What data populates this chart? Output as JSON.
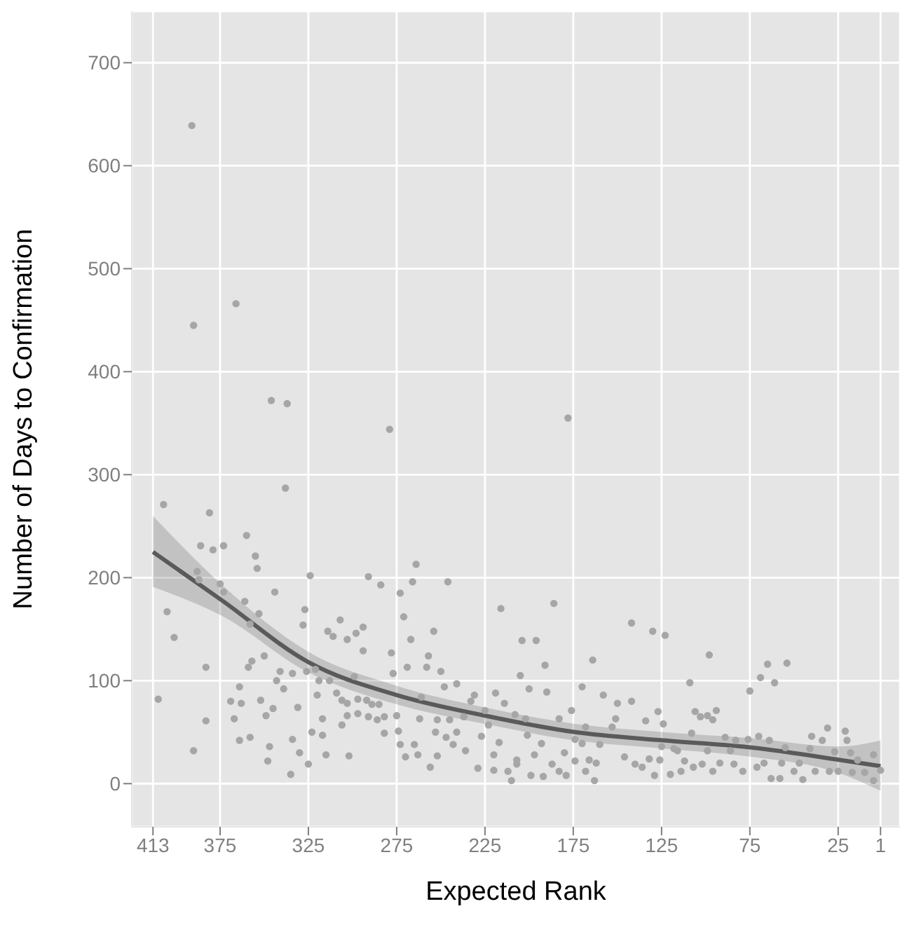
{
  "chart_data": {
    "type": "scatter",
    "xlabel": "Expected Rank",
    "ylabel": "Number of Days to Confirmation",
    "xlim": [
      425,
      -10
    ],
    "xticks": [
      413,
      375,
      325,
      275,
      225,
      175,
      125,
      75,
      25,
      1
    ],
    "ylim": [
      -42,
      750
    ],
    "yticks": [
      0,
      100,
      200,
      300,
      400,
      500,
      600,
      700
    ],
    "grid": true,
    "legend": false,
    "series": [
      {
        "marker": "circle",
        "color": "#a6a6a6",
        "x": [
          391,
          366,
          390,
          346,
          337,
          279,
          338,
          407,
          381,
          386,
          379,
          373,
          360,
          355,
          354,
          388,
          387,
          375,
          373,
          324,
          344,
          361,
          353,
          327,
          328,
          405,
          401,
          358,
          350,
          357,
          359,
          383,
          410,
          383,
          390,
          364,
          369,
          363,
          367,
          364,
          358,
          352,
          345,
          349,
          347,
          348,
          335,
          334,
          330,
          325,
          323,
          317,
          317,
          315,
          331,
          339,
          343,
          341,
          334,
          326,
          321,
          319,
          320,
          313,
          314,
          311,
          307,
          303,
          298,
          294,
          294,
          291,
          284,
          309,
          306,
          303,
          299,
          297,
          297,
          303,
          306,
          302,
          292,
          289,
          285,
          291,
          286,
          282,
          282,
          278,
          277,
          274,
          275,
          273,
          270,
          269,
          267,
          271,
          273,
          266,
          264,
          265,
          263,
          262,
          261,
          258,
          257,
          254,
          246,
          250,
          248,
          241,
          252,
          253,
          247,
          256,
          252,
          245,
          243,
          241,
          236,
          237,
          233,
          231,
          225,
          227,
          229,
          220,
          220,
          217,
          223,
          219,
          216,
          212,
          210,
          207,
          208,
          214,
          178,
          186,
          204,
          196,
          191,
          205,
          200,
          190,
          202,
          201,
          207,
          199,
          192,
          183,
          193,
          197,
          187,
          183,
          179,
          180,
          176,
          174,
          174,
          168,
          163,
          166,
          162,
          168,
          170,
          164,
          170,
          158,
          160,
          153,
          151,
          150,
          142,
          142,
          130,
          123,
          127,
          134,
          146,
          140,
          136,
          132,
          129,
          126,
          125,
          124,
          118,
          116,
          120,
          114,
          112,
          109,
          108,
          107,
          102,
          106,
          103,
          99,
          96,
          94,
          98,
          99,
          96,
          92,
          89,
          86,
          83,
          84,
          79,
          76,
          71,
          70,
          64,
          67,
          75,
          69,
          65,
          61,
          54,
          63,
          58,
          57,
          55,
          50,
          45,
          47,
          41,
          40,
          38,
          34,
          31,
          30,
          27,
          25,
          21,
          20,
          18,
          17,
          14,
          10,
          5,
          5,
          1
        ],
        "values": [
          639,
          466,
          445,
          372,
          369,
          344,
          287,
          271,
          263,
          231,
          227,
          231,
          241,
          221,
          209,
          206,
          198,
          194,
          186,
          202,
          186,
          177,
          165,
          169,
          154,
          167,
          142,
          155,
          124,
          119,
          113,
          113,
          82,
          61,
          32,
          94,
          80,
          78,
          63,
          42,
          45,
          81,
          73,
          66,
          36,
          22,
          9,
          43,
          30,
          19,
          50,
          63,
          47,
          28,
          74,
          92,
          100,
          109,
          107,
          109,
          111,
          100,
          86,
          100,
          148,
          143,
          159,
          140,
          146,
          152,
          129,
          201,
          193,
          88,
          81,
          78,
          104,
          82,
          68,
          66,
          57,
          27,
          81,
          77,
          77,
          65,
          62,
          65,
          49,
          127,
          107,
          51,
          66,
          38,
          26,
          113,
          140,
          162,
          185,
          196,
          213,
          38,
          28,
          63,
          84,
          113,
          124,
          148,
          196,
          109,
          94,
          97,
          62,
          50,
          45,
          16,
          27,
          62,
          38,
          50,
          32,
          65,
          80,
          86,
          71,
          46,
          15,
          28,
          13,
          40,
          57,
          88,
          170,
          12,
          3,
          19,
          67,
          78,
          355,
          175,
          139,
          139,
          115,
          105,
          92,
          89,
          63,
          47,
          23,
          8,
          7,
          63,
          39,
          28,
          19,
          12,
          8,
          30,
          71,
          43,
          22,
          12,
          3,
          23,
          20,
          55,
          39,
          120,
          94,
          86,
          38,
          55,
          63,
          78,
          80,
          156,
          148,
          144,
          70,
          61,
          26,
          19,
          16,
          24,
          8,
          23,
          36,
          58,
          34,
          32,
          9,
          12,
          22,
          98,
          49,
          16,
          19,
          70,
          65,
          66,
          62,
          71,
          125,
          32,
          12,
          20,
          45,
          32,
          42,
          19,
          12,
          43,
          16,
          46,
          42,
          20,
          90,
          103,
          116,
          98,
          117,
          5,
          5,
          20,
          35,
          12,
          4,
          20,
          34,
          46,
          12,
          42,
          54,
          12,
          31,
          12,
          51,
          42,
          30,
          11,
          23,
          11,
          28,
          3,
          13
        ]
      },
      {
        "type": "line",
        "marker": "none",
        "color": "#5a5a5a",
        "x": [
          413,
          374,
          325,
          275,
          225,
          174,
          124,
          74,
          24,
          1
        ],
        "values": [
          225,
          178,
          118,
          86,
          66,
          50,
          42,
          35,
          23,
          17
        ],
        "lower": [
          191,
          163,
          108,
          77,
          58,
          42,
          34,
          26,
          10,
          -7
        ],
        "upper": [
          260,
          193,
          128,
          95,
          74,
          58,
          50,
          44,
          36,
          42
        ]
      }
    ]
  }
}
